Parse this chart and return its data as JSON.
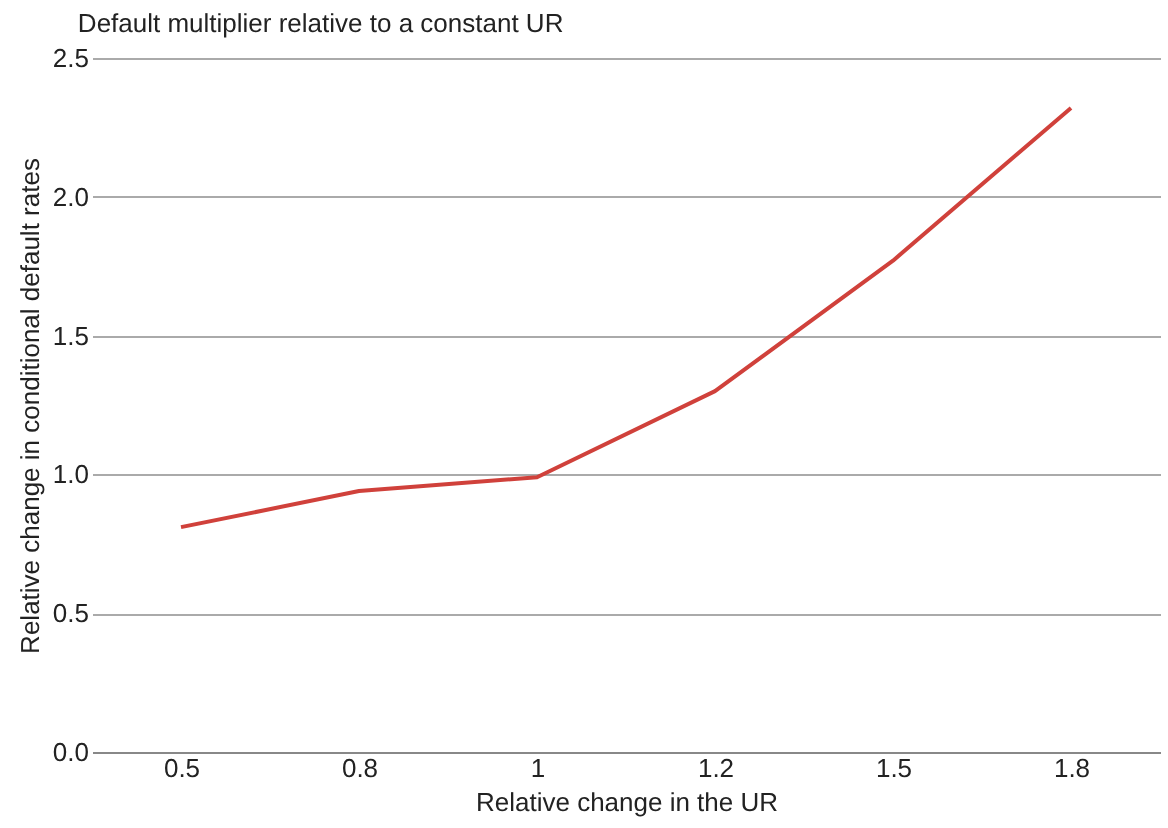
{
  "chart_data": {
    "type": "line",
    "title": "Default multiplier relative to a constant UR",
    "xlabel": "Relative change in the UR",
    "ylabel": "Relative change in conditional default rates",
    "categories": [
      "0.5",
      "0.8",
      "1",
      "1.2",
      "1.5",
      "1.8"
    ],
    "series": [
      {
        "color": "#d0413b",
        "values": [
          0.81,
          0.94,
          0.99,
          1.3,
          1.77,
          2.32
        ]
      }
    ],
    "ylim": [
      0,
      2.5
    ],
    "yticks": [
      {
        "value": 0,
        "label": "0.0"
      },
      0.5,
      {
        "value": 1,
        "label": "1.0"
      },
      1.5,
      {
        "value": 2,
        "label": "2.0"
      },
      2.5
    ],
    "grid": "y",
    "legend": false,
    "marker": "none",
    "line_style": "solid"
  }
}
